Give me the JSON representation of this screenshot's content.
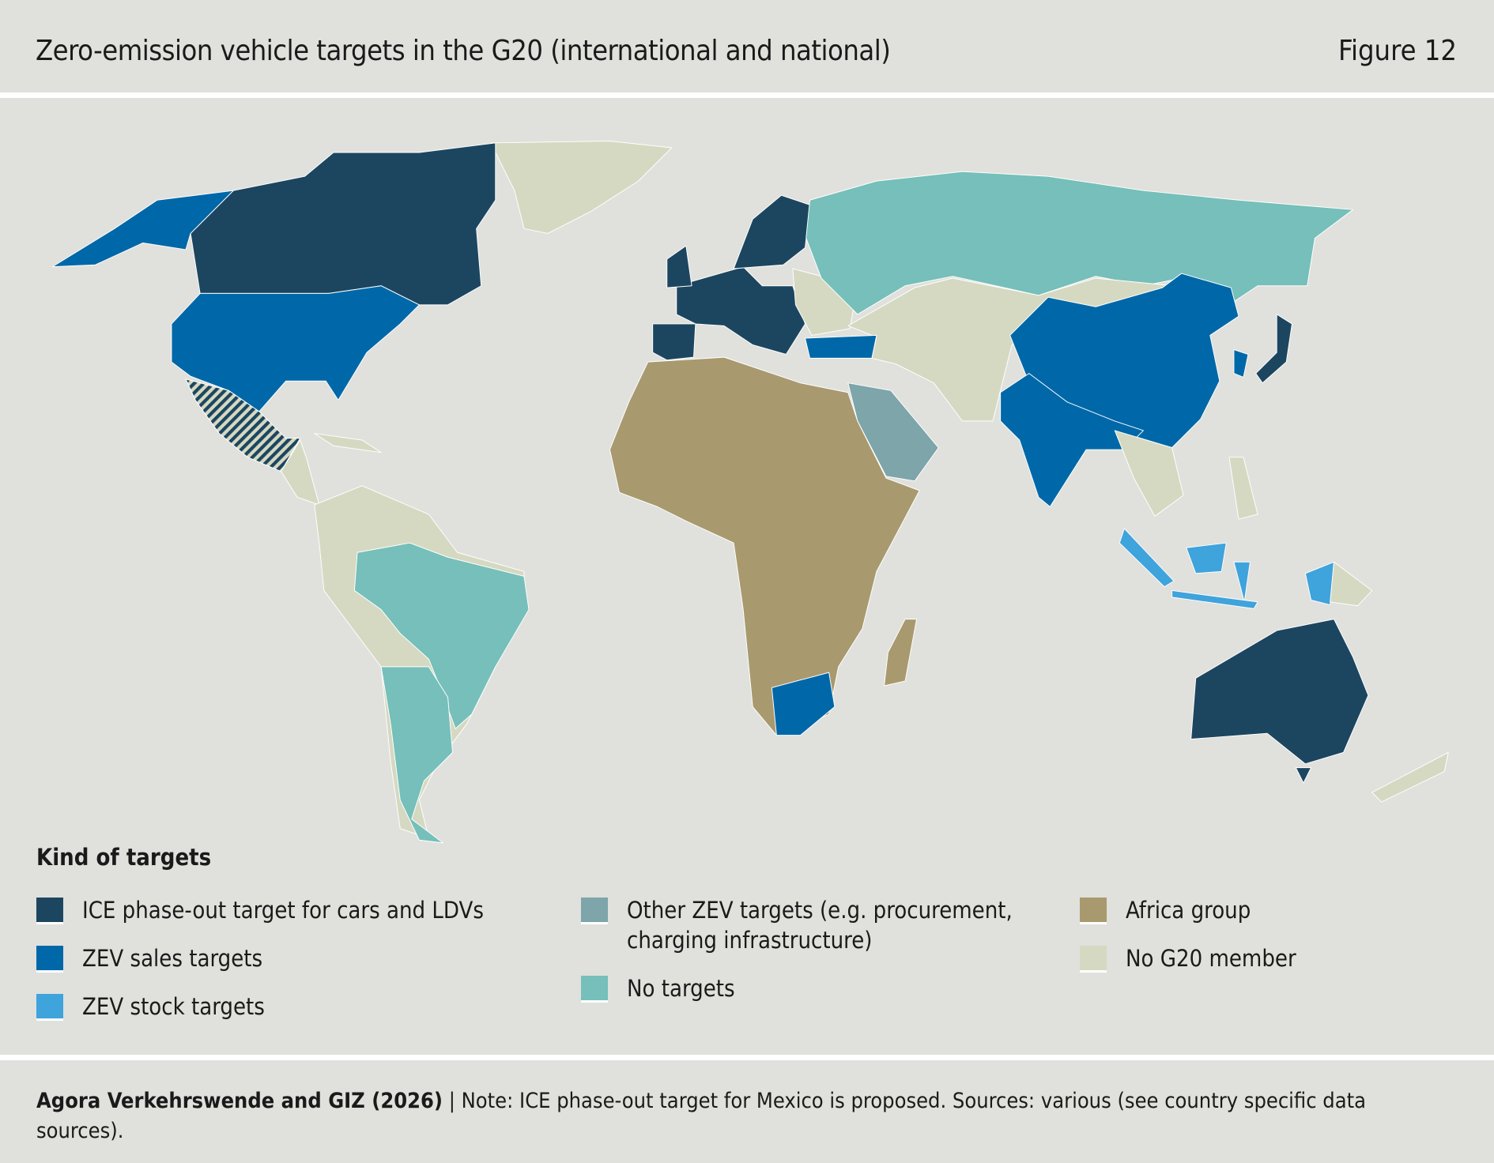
{
  "header": {
    "title": "Zero-emission vehicle targets in the G20 (international and national)",
    "figure": "Figure 12"
  },
  "legend": {
    "title": "Kind of targets",
    "items": [
      {
        "key": "ice",
        "label": "ICE phase-out target for cars and LDVs",
        "color": "#1c4660"
      },
      {
        "key": "sales",
        "label": "ZEV sales targets",
        "color": "#0068a8"
      },
      {
        "key": "stock",
        "label": "ZEV stock targets",
        "color": "#3fa3dc"
      },
      {
        "key": "other",
        "label": "Other ZEV targets (e.g. procurement, charging infrastructure)",
        "color": "#7da5aa"
      },
      {
        "key": "none",
        "label": "No targets",
        "color": "#76bfba"
      },
      {
        "key": "africa",
        "label": "Africa group",
        "color": "#a89a6e"
      },
      {
        "key": "nong20",
        "label": "No G20 member",
        "color": "#d6d9c2"
      }
    ]
  },
  "footer": {
    "source": "Agora Verkehrswende and GIZ (2026)",
    "note": " | Note: ICE phase-out target for Mexico is proposed. Sources: various (see country specific data sources)."
  },
  "colors": {
    "background": "#e0e0dc",
    "hatch": "#1c4660",
    "border": "#ffffff"
  }
}
